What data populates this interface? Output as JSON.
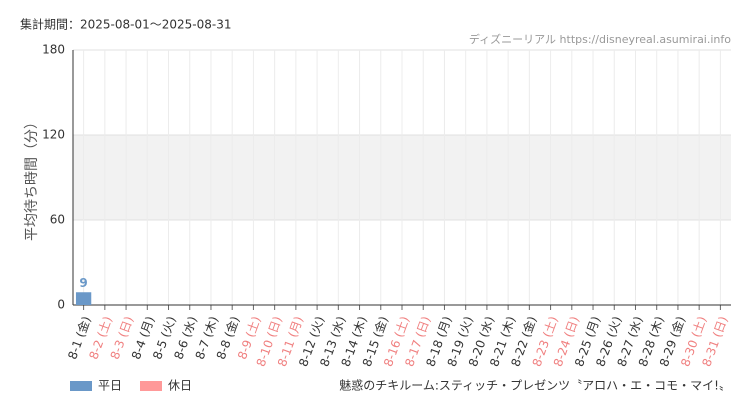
{
  "chart_data": {
    "type": "bar",
    "period": "集計期間：2025-08-01～2025-08-31",
    "source": "ディズニーリアル https://disneyreal.asumirai.info",
    "attraction": "魅惑のチキルーム:スティッチ・プレゼンツ〝アロハ・エ・コモ・マイ!〟",
    "y_label": "平均待ち時間（分）",
    "categories": [
      "8-1 (金)",
      "8-2 (土)",
      "8-3 (日)",
      "8-4 (月)",
      "8-5 (火)",
      "8-6 (水)",
      "8-7 (木)",
      "8-8 (金)",
      "8-9 (土)",
      "8-10 (日)",
      "8-11 (月)",
      "8-12 (火)",
      "8-13 (水)",
      "8-14 (木)",
      "8-15 (金)",
      "8-16 (土)",
      "8-17 (日)",
      "8-18 (月)",
      "8-19 (火)",
      "8-20 (水)",
      "8-21 (木)",
      "8-22 (金)",
      "8-23 (土)",
      "8-24 (日)",
      "8-25 (月)",
      "8-26 (火)",
      "8-27 (水)",
      "8-28 (木)",
      "8-29 (金)",
      "8-30 (土)",
      "8-31 (日)"
    ],
    "category_colors": [
      "#333",
      "#f08080",
      "#f08080",
      "#333",
      "#333",
      "#333",
      "#333",
      "#333",
      "#f08080",
      "#f08080",
      "#f08080",
      "#333",
      "#333",
      "#333",
      "#333",
      "#f08080",
      "#f08080",
      "#333",
      "#333",
      "#333",
      "#333",
      "#333",
      "#f08080",
      "#f08080",
      "#333",
      "#333",
      "#333",
      "#333",
      "#333",
      "#f08080",
      "#f08080"
    ],
    "series": [
      {
        "name": "平日",
        "color": "#6a98c8",
        "values": [
          9,
          null,
          null,
          null,
          null,
          null,
          null,
          null,
          null,
          null,
          null,
          null,
          null,
          null,
          null,
          null,
          null,
          null,
          null,
          null,
          null,
          null,
          null,
          null,
          null,
          null,
          null,
          null,
          null,
          null,
          null
        ]
      },
      {
        "name": "休日",
        "color": "#ff9999",
        "values": [
          null,
          null,
          null,
          null,
          null,
          null,
          null,
          null,
          null,
          null,
          null,
          null,
          null,
          null,
          null,
          null,
          null,
          null,
          null,
          null,
          null,
          null,
          null,
          null,
          null,
          null,
          null,
          null,
          null,
          null,
          null
        ]
      }
    ],
    "ylim": [
      0,
      180
    ],
    "yticks": [
      0,
      60,
      120,
      180
    ],
    "shaded_range": [
      60,
      120
    ],
    "grid": true
  }
}
